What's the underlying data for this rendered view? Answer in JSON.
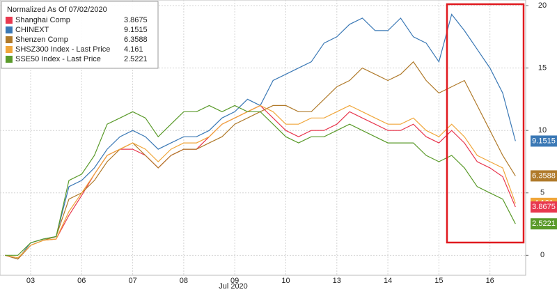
{
  "chart_data": {
    "type": "line",
    "legend_title": "Normalized As Of 07/02/2020",
    "x_label": "Jul 2020",
    "x": [
      0,
      0.25,
      0.5,
      0.75,
      1,
      1.25,
      1.5,
      1.75,
      2,
      2.25,
      2.5,
      2.75,
      3,
      3.25,
      3.5,
      3.75,
      4,
      4.25,
      4.5,
      4.75,
      5,
      5.25,
      5.5,
      5.75,
      6,
      6.25,
      6.5,
      6.75,
      7,
      7.25,
      7.5,
      7.75,
      8,
      8.25,
      8.5,
      8.75,
      9,
      9.25,
      9.5,
      9.75,
      10
    ],
    "xlim": [
      -0.1,
      10.2
    ],
    "xticks": [
      {
        "value": 0.5,
        "label": "03"
      },
      {
        "value": 1.5,
        "label": "06"
      },
      {
        "value": 2.5,
        "label": "07"
      },
      {
        "value": 3.5,
        "label": "08"
      },
      {
        "value": 4.5,
        "label": "09"
      },
      {
        "value": 5.5,
        "label": "10"
      },
      {
        "value": 6.5,
        "label": "13"
      },
      {
        "value": 7.5,
        "label": "14"
      },
      {
        "value": 8.5,
        "label": "15"
      },
      {
        "value": 9.5,
        "label": "16"
      }
    ],
    "ylim": [
      -1.6,
      20.45
    ],
    "yticks": [
      0,
      5,
      10,
      15,
      20
    ],
    "grid": true,
    "series": [
      {
        "name": "Shanghai Comp",
        "last": 3.8675,
        "color": "#e8384f",
        "values": [
          0,
          -0.3,
          0.8,
          1.2,
          1.3,
          3.2,
          4.8,
          6.5,
          8,
          8.5,
          8.5,
          8,
          7,
          8,
          8.5,
          8.5,
          9.5,
          10.5,
          11,
          11.5,
          12,
          11,
          10,
          9.5,
          10,
          10,
          10.5,
          11.5,
          11,
          10.5,
          10,
          10,
          10.5,
          9.5,
          9,
          10,
          9,
          7.5,
          7,
          6.3,
          3.87
        ]
      },
      {
        "name": "CHINEXT",
        "last": 9.1515,
        "color": "#3a78b5",
        "values": [
          0,
          -0.3,
          1,
          1.3,
          1.5,
          5.5,
          6,
          7,
          8.5,
          9.5,
          10,
          9.5,
          8.5,
          9,
          9.5,
          9.5,
          10,
          11,
          11.5,
          12.5,
          12,
          14,
          14.5,
          15,
          15.5,
          17,
          17.5,
          18.5,
          19,
          18,
          18,
          19,
          17.5,
          17,
          15.5,
          19.3,
          18,
          16.5,
          15,
          13,
          9.15
        ]
      },
      {
        "name": "Shenzen Comp",
        "last": 6.3588,
        "color": "#b07a2a",
        "values": [
          0,
          -0.3,
          0.8,
          1.2,
          1.5,
          4.5,
          5,
          6,
          7.5,
          8.5,
          9,
          8,
          7,
          8,
          8.5,
          8.5,
          9,
          9.5,
          10.5,
          11,
          11.5,
          12,
          12,
          11.5,
          11.5,
          12.5,
          13.5,
          14,
          15,
          14.5,
          14,
          14.5,
          15.5,
          14,
          13,
          13.5,
          14,
          12,
          10,
          8,
          6.36
        ]
      },
      {
        "name": "SHSZ300 Index - Last Price",
        "last": 4.161,
        "color": "#f0a63a",
        "values": [
          0,
          -0.2,
          0.8,
          1.2,
          1.3,
          3.5,
          5,
          6.5,
          8,
          8.5,
          9,
          8.5,
          7.5,
          8.5,
          9,
          9,
          9.5,
          10.5,
          11,
          11.5,
          12,
          11.5,
          10.5,
          10.5,
          11,
          11,
          11.5,
          12,
          11.5,
          11,
          10.5,
          10.5,
          11,
          10,
          9.5,
          10.5,
          9.5,
          8,
          7.5,
          7,
          4.16
        ]
      },
      {
        "name": "SSE50 Index - Last Price",
        "last": 2.5221,
        "color": "#5a9a2a",
        "values": [
          0,
          0,
          1,
          1.3,
          1.5,
          6,
          6.5,
          8,
          10.5,
          11,
          11.5,
          11,
          9.5,
          10.5,
          11.5,
          11.5,
          12,
          11.5,
          12,
          11.5,
          11.5,
          10.5,
          9.5,
          9,
          9.5,
          9.5,
          10,
          10.5,
          10,
          9.5,
          9,
          9,
          9,
          8,
          7.5,
          8,
          7,
          5.5,
          5,
          4.5,
          2.52
        ]
      }
    ]
  }
}
